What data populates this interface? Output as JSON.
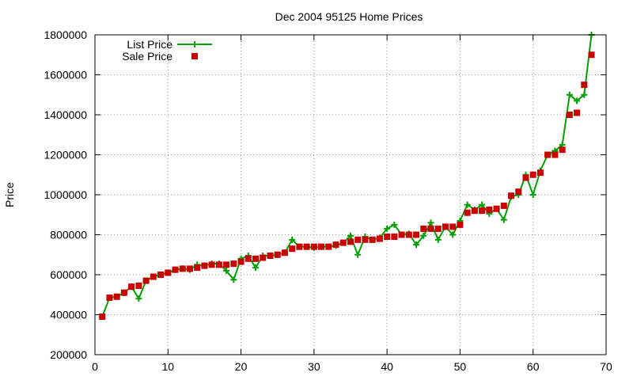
{
  "chart_data": {
    "type": "line",
    "title": "Dec 2004 95125 Home Prices",
    "xlabel": "",
    "ylabel": "Price",
    "xlim": [
      0,
      70
    ],
    "ylim": [
      200000,
      1800000
    ],
    "x_ticks": [
      "0",
      "10",
      "20",
      "30",
      "40",
      "50",
      "60",
      "70"
    ],
    "y_ticks": [
      "200000",
      "400000",
      "600000",
      "800000",
      "1000000",
      "1200000",
      "1400000",
      "1600000",
      "1800000"
    ],
    "grid": true,
    "legend_position": "top-left",
    "x": [
      1,
      2,
      3,
      4,
      5,
      6,
      7,
      8,
      9,
      10,
      11,
      12,
      13,
      14,
      15,
      16,
      17,
      18,
      19,
      20,
      21,
      22,
      23,
      24,
      25,
      26,
      27,
      28,
      29,
      30,
      31,
      32,
      33,
      34,
      35,
      36,
      37,
      38,
      39,
      40,
      41,
      42,
      43,
      44,
      45,
      46,
      47,
      48,
      49,
      50,
      51,
      52,
      53,
      54,
      55,
      56,
      57,
      58,
      59,
      60,
      61,
      62,
      63,
      64,
      65,
      66,
      67,
      68
    ],
    "series": [
      {
        "name": "List Price",
        "color": "#00a000",
        "style": "lines+points",
        "marker": "plus",
        "values": [
          390000,
          485000,
          490000,
          510000,
          540000,
          480000,
          570000,
          590000,
          600000,
          610000,
          625000,
          630000,
          625000,
          650000,
          645000,
          655000,
          655000,
          620000,
          575000,
          680000,
          695000,
          635000,
          695000,
          695000,
          700000,
          710000,
          775000,
          740000,
          740000,
          735000,
          740000,
          740000,
          745000,
          760000,
          795000,
          700000,
          790000,
          775000,
          785000,
          830000,
          850000,
          800000,
          805000,
          750000,
          795000,
          860000,
          775000,
          840000,
          800000,
          870000,
          950000,
          925000,
          950000,
          905000,
          930000,
          875000,
          990000,
          1000000,
          1100000,
          1000000,
          1120000,
          1200000,
          1220000,
          1250000,
          1500000,
          1470000,
          1500000,
          1800000
        ]
      },
      {
        "name": "Sale Price",
        "color": "#c80000",
        "style": "points",
        "marker": "square",
        "values": [
          390000,
          485000,
          490000,
          510000,
          540000,
          545000,
          570000,
          590000,
          600000,
          610000,
          625000,
          630000,
          630000,
          635000,
          645000,
          650000,
          650000,
          650000,
          655000,
          665000,
          680000,
          680000,
          685000,
          695000,
          700000,
          710000,
          730000,
          740000,
          740000,
          740000,
          740000,
          740000,
          750000,
          760000,
          765000,
          775000,
          775000,
          775000,
          780000,
          790000,
          790000,
          800000,
          800000,
          800000,
          830000,
          830000,
          830000,
          840000,
          840000,
          850000,
          910000,
          920000,
          920000,
          925000,
          930000,
          945000,
          995000,
          1015000,
          1085000,
          1100000,
          1110000,
          1200000,
          1200000,
          1225000,
          1400000,
          1410000,
          1550000,
          1700000
        ]
      }
    ]
  }
}
